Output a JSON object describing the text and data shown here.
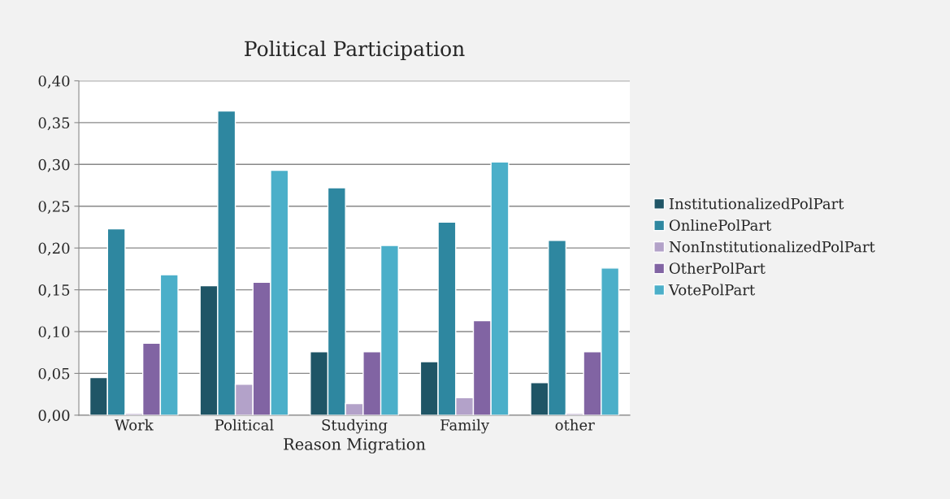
{
  "chart_data": {
    "type": "bar",
    "title": "Political Participation",
    "xlabel": "Reason Migration",
    "categories": [
      "Work",
      "Political",
      "Studying",
      "Family",
      "other"
    ],
    "series": [
      {
        "name": "InstitutionalizedPolPart",
        "color": "#1f5566",
        "values": [
          0.045,
          0.155,
          0.076,
          0.064,
          0.039
        ]
      },
      {
        "name": "OnlinePolPart",
        "color": "#2e87a0",
        "values": [
          0.223,
          0.364,
          0.272,
          0.231,
          0.209
        ]
      },
      {
        "name": "NonInstitutionalizedPolPart",
        "color": "#b3a2c9",
        "values": [
          0.002,
          0.037,
          0.014,
          0.021,
          0.002
        ]
      },
      {
        "name": "OtherPolPart",
        "color": "#8164a3",
        "values": [
          0.086,
          0.159,
          0.076,
          0.113,
          0.076
        ]
      },
      {
        "name": "VotePolPart",
        "color": "#4bafc9",
        "values": [
          0.168,
          0.293,
          0.203,
          0.303,
          0.176
        ]
      }
    ],
    "ylim": [
      0,
      0.4
    ],
    "yticks": [
      {
        "value": 0,
        "label": "0,00"
      },
      {
        "value": 0.05,
        "label": "0,05"
      },
      {
        "value": 0.1,
        "label": "0,10"
      },
      {
        "value": 0.15,
        "label": "0,15"
      },
      {
        "value": 0.2,
        "label": "0,20"
      },
      {
        "value": 0.25,
        "label": "0,25"
      },
      {
        "value": 0.3,
        "label": "0,30"
      },
      {
        "value": 0.35,
        "label": "0,35"
      },
      {
        "value": 0.4,
        "label": "0,40"
      }
    ],
    "grid": "y",
    "legend": "right"
  }
}
